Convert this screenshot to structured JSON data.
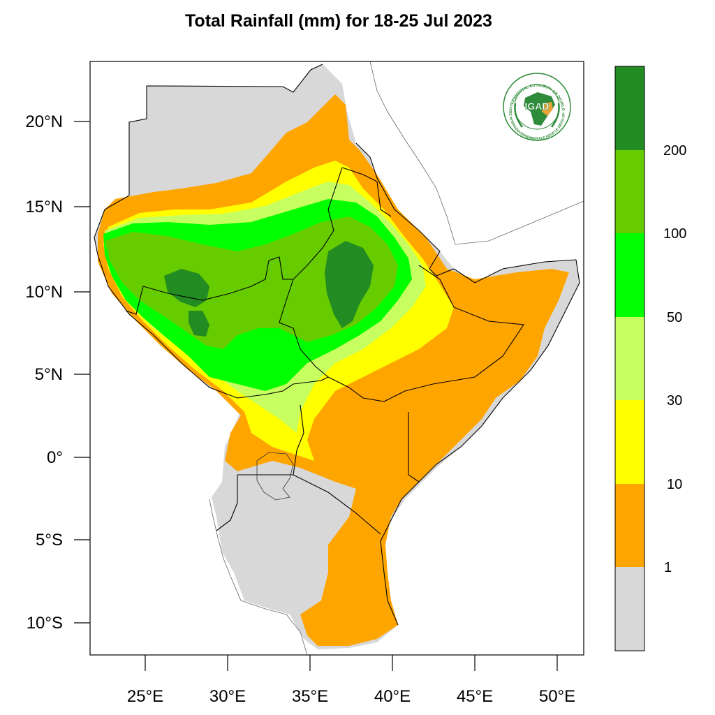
{
  "title": "Total Rainfall (mm) for 18-25 Jul 2023",
  "map": {
    "region": "Eastern Africa (IGAD region)",
    "lon_range": [
      21.7,
      51.6
    ],
    "lat_range": [
      -11.9,
      23.5
    ],
    "lat_ticks": [
      {
        "value": 20,
        "label": "20°N"
      },
      {
        "value": 15,
        "label": "15°N"
      },
      {
        "value": 10,
        "label": "10°N"
      },
      {
        "value": 5,
        "label": "5°N"
      },
      {
        "value": 0,
        "label": "0°"
      },
      {
        "value": -5,
        "label": "5°S"
      },
      {
        "value": -10,
        "label": "10°S"
      }
    ],
    "lon_ticks": [
      {
        "value": 25,
        "label": "25°E"
      },
      {
        "value": 30,
        "label": "30°E"
      },
      {
        "value": 35,
        "label": "35°E"
      },
      {
        "value": 40,
        "label": "40°E"
      },
      {
        "value": 45,
        "label": "45°E"
      },
      {
        "value": 50,
        "label": "50°E"
      }
    ]
  },
  "legend": {
    "units": "mm",
    "bins": [
      {
        "range": "< 1",
        "color": "#d8d8d8"
      },
      {
        "range": "1-10",
        "color": "#ffa500"
      },
      {
        "range": "10-30",
        "color": "#ffff00"
      },
      {
        "range": "30-50",
        "color": "#c8ff60"
      },
      {
        "range": "50-100",
        "color": "#00ff00"
      },
      {
        "range": "100-200",
        "color": "#66cc00"
      },
      {
        "range": "> 200",
        "color": "#228b22"
      }
    ],
    "labels": [
      "1",
      "10",
      "30",
      "50",
      "100",
      "200"
    ]
  },
  "logo": {
    "name": "IGAD",
    "ring_text": "INTERGOVERNMENTAL AUTHORITY ON DEVELOPMENT",
    "ring_text_fr": "AUTORITÉ INTERGOUVERNEMENTALE POUR LE DÉVELOPPEMENT",
    "color": "#2e8b3a"
  }
}
